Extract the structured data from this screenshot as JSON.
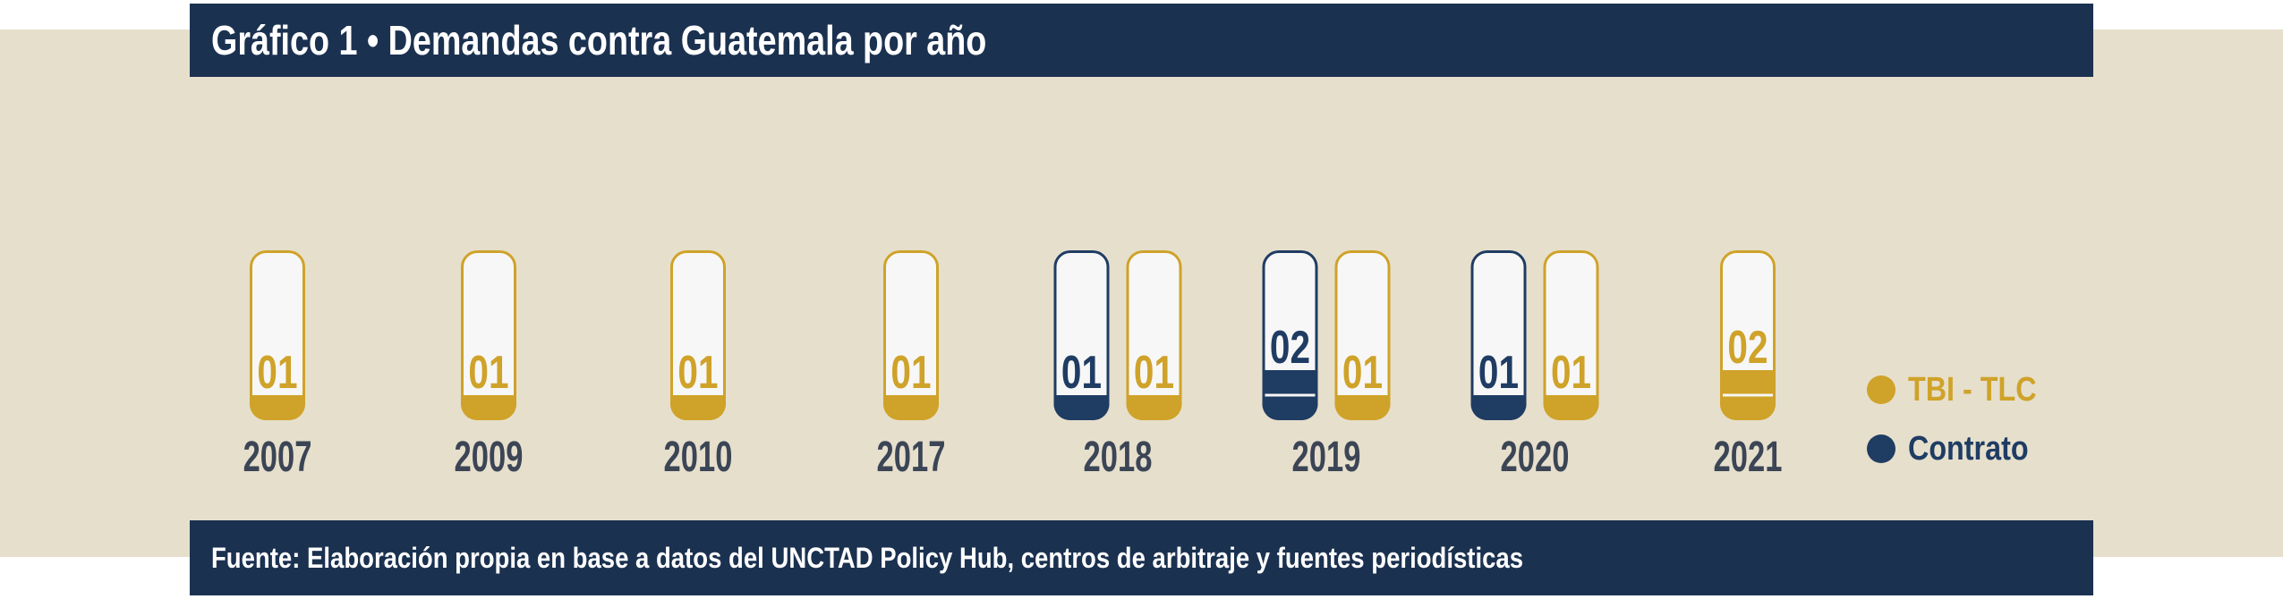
{
  "header": {
    "title": "Gráfico 1 • Demandas contra Guatemala por año"
  },
  "footer": {
    "source": "Fuente: Elaboración propia en base a datos del UNCTAD Policy Hub, centros de arbitraje y fuentes periodísticas"
  },
  "legend": {
    "items": [
      {
        "label": "TBI - TLC",
        "color": "#cfa229"
      },
      {
        "label": "Contrato",
        "color": "#1f3c63"
      }
    ]
  },
  "colors": {
    "gold": "#cfa229",
    "navy": "#1f3c63",
    "band_bg": "#e6dfcc",
    "bar_bg": "#1b3150",
    "year_text": "#3b4555"
  },
  "chart_data": {
    "type": "bar",
    "title": "Gráfico 1 • Demandas contra Guatemala por año",
    "categories": [
      "2007",
      "2009",
      "2010",
      "2017",
      "2018",
      "2019",
      "2020",
      "2021"
    ],
    "series": [
      {
        "name": "TBI - TLC",
        "values": [
          1,
          1,
          1,
          1,
          1,
          1,
          1,
          2
        ],
        "labels": [
          "01",
          "01",
          "01",
          "01",
          "01",
          "01",
          "01",
          "02"
        ]
      },
      {
        "name": "Contrato",
        "values": [
          0,
          0,
          0,
          0,
          1,
          2,
          1,
          0
        ],
        "labels": [
          "",
          "",
          "",
          "",
          "01",
          "02",
          "01",
          ""
        ]
      }
    ]
  }
}
